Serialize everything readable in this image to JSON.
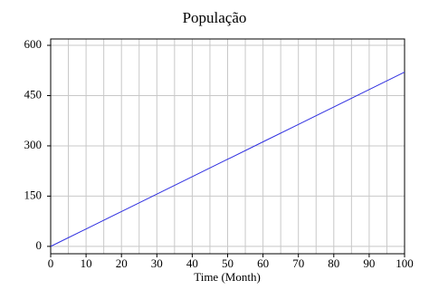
{
  "chart_data": {
    "type": "line",
    "title": "População",
    "x_label": "Time (Month)",
    "x": [
      0,
      10,
      20,
      30,
      40,
      50,
      60,
      70,
      80,
      90,
      100
    ],
    "series": [
      {
        "name": "População",
        "color": "#3030e0",
        "values": [
          0,
          52,
          104,
          156,
          208,
          260,
          312,
          364,
          416,
          468,
          520
        ]
      }
    ],
    "xlim": [
      0,
      100
    ],
    "xticks": [
      0,
      10,
      20,
      30,
      40,
      50,
      60,
      70,
      80,
      90,
      100
    ],
    "xgridlines": [
      5,
      10,
      15,
      20,
      25,
      30,
      35,
      40,
      45,
      50,
      55,
      60,
      65,
      70,
      75,
      80,
      85,
      90,
      95
    ],
    "ylim": [
      -22,
      619
    ],
    "yticks": [
      0,
      150,
      300,
      450,
      600
    ],
    "grid": true
  }
}
